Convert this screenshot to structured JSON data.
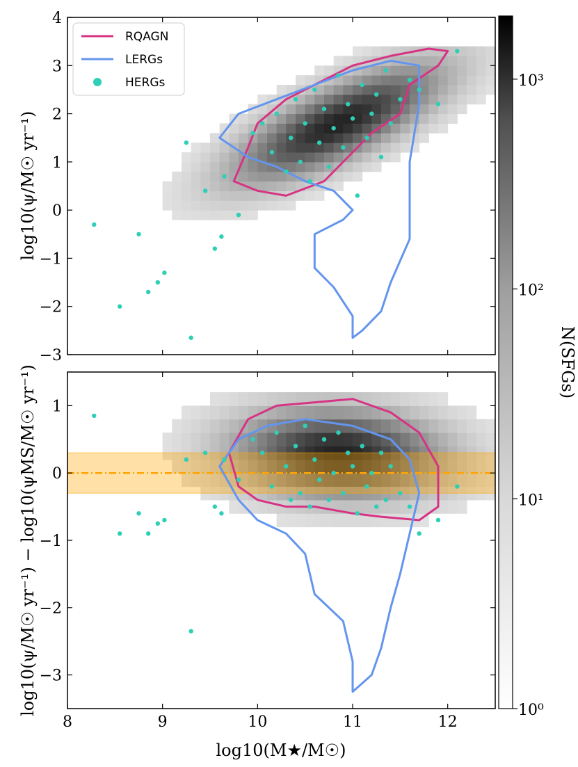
{
  "chart_data": [
    {
      "panel": "top",
      "type": "scatter",
      "ylabel": "log10(ψ/M☉ yr⁻¹)",
      "xlim": [
        8,
        12.5
      ],
      "ylim": [
        -3,
        4
      ],
      "yticks": [
        -3,
        -2,
        -1,
        0,
        1,
        2,
        3,
        4
      ],
      "ytick_labels": [
        "−3",
        "−2",
        "−1",
        "0",
        "1",
        "2",
        "3",
        "4"
      ],
      "legend": {
        "position": "top-left",
        "entries": [
          {
            "label": "RQAGN",
            "kind": "line",
            "color": "#d63384"
          },
          {
            "label": "LERGs",
            "kind": "line",
            "color": "#6495ed"
          },
          {
            "label": "HERGs",
            "kind": "marker",
            "color": "#2ecfb6"
          }
        ]
      },
      "series": [
        {
          "name": "SFGs",
          "kind": "2d-histogram (grey, log colour scale)"
        },
        {
          "name": "RQAGN",
          "kind": "density contour",
          "color": "#d63384",
          "contour": [
            [
              9.75,
              0.6
            ],
            [
              9.9,
              1.3
            ],
            [
              10.0,
              1.8
            ],
            [
              10.3,
              2.3
            ],
            [
              10.6,
              2.6
            ],
            [
              11.0,
              3.0
            ],
            [
              11.4,
              3.2
            ],
            [
              11.8,
              3.35
            ],
            [
              12.0,
              3.3
            ],
            [
              11.9,
              3.0
            ],
            [
              11.6,
              2.6
            ],
            [
              11.5,
              2.0
            ],
            [
              11.2,
              1.6
            ],
            [
              11.0,
              1.2
            ],
            [
              10.7,
              0.6
            ],
            [
              10.3,
              0.3
            ],
            [
              10.0,
              0.4
            ],
            [
              9.75,
              0.6
            ]
          ]
        },
        {
          "name": "LERGs",
          "kind": "density contour",
          "color": "#6495ed",
          "contour": [
            [
              9.6,
              1.5
            ],
            [
              9.8,
              2.0
            ],
            [
              10.2,
              2.3
            ],
            [
              10.6,
              2.6
            ],
            [
              11.0,
              2.9
            ],
            [
              11.4,
              3.1
            ],
            [
              11.7,
              3.0
            ],
            [
              11.7,
              2.2
            ],
            [
              11.6,
              1.0
            ],
            [
              11.6,
              0.2
            ],
            [
              11.6,
              -0.6
            ],
            [
              11.4,
              -1.5
            ],
            [
              11.3,
              -2.1
            ],
            [
              11.1,
              -2.5
            ],
            [
              11.0,
              -2.65
            ],
            [
              11.0,
              -2.2
            ],
            [
              10.8,
              -1.6
            ],
            [
              10.6,
              -1.2
            ],
            [
              10.6,
              -0.5
            ],
            [
              10.9,
              -0.2
            ],
            [
              11.0,
              0.0
            ],
            [
              10.8,
              0.4
            ],
            [
              10.5,
              0.6
            ],
            [
              10.2,
              0.9
            ],
            [
              9.9,
              1.1
            ],
            [
              9.6,
              1.5
            ]
          ]
        },
        {
          "name": "HERGs",
          "kind": "points",
          "color": "#2ecfb6",
          "x": [
            8.28,
            8.55,
            8.75,
            8.85,
            8.95,
            9.02,
            9.25,
            9.3,
            9.45,
            9.55,
            9.62,
            9.65,
            9.8,
            9.95,
            10.05,
            10.15,
            10.2,
            10.3,
            10.35,
            10.4,
            10.45,
            10.5,
            10.55,
            10.6,
            10.65,
            10.7,
            10.75,
            10.8,
            10.85,
            10.9,
            10.95,
            11.0,
            11.05,
            11.1,
            11.15,
            11.2,
            11.25,
            11.3,
            11.35,
            11.4,
            11.5,
            11.6,
            11.7,
            11.9,
            12.1
          ],
          "y": [
            -0.3,
            -2.0,
            -0.5,
            -1.7,
            -1.5,
            -1.3,
            1.4,
            -2.65,
            0.4,
            -0.8,
            -0.55,
            0.7,
            -0.1,
            1.6,
            1.8,
            1.2,
            2.0,
            0.8,
            1.5,
            2.3,
            1.0,
            1.8,
            0.6,
            2.5,
            1.4,
            2.1,
            0.9,
            1.7,
            2.8,
            1.3,
            2.2,
            1.9,
            0.3,
            2.6,
            1.5,
            2.0,
            2.4,
            1.1,
            2.9,
            1.8,
            2.3,
            2.7,
            2.5,
            2.2,
            3.3
          ]
        }
      ]
    },
    {
      "panel": "bottom",
      "type": "scatter",
      "xlabel": "log10(M★/M☉)",
      "ylabel": "log10(ψ/M☉ yr⁻¹) − log10(ψMS/M☉ yr⁻¹)",
      "xlim": [
        8,
        12.5
      ],
      "ylim": [
        -3.5,
        1.5
      ],
      "xticks": [
        8,
        9,
        10,
        11,
        12
      ],
      "xtick_labels": [
        "8",
        "9",
        "10",
        "11",
        "12"
      ],
      "yticks": [
        -3,
        -2,
        -1,
        0,
        1
      ],
      "ytick_labels": [
        "−3",
        "−2",
        "−1",
        "0",
        "1"
      ],
      "main_sequence_band": {
        "center": 0.0,
        "lower": -0.3,
        "upper": 0.3,
        "color": "#ffa500"
      },
      "series": [
        {
          "name": "SFGs",
          "kind": "2d-histogram (grey, log colour scale)"
        },
        {
          "name": "RQAGN",
          "kind": "density contour",
          "color": "#d63384",
          "contour": [
            [
              9.7,
              0.3
            ],
            [
              9.9,
              0.8
            ],
            [
              10.2,
              1.0
            ],
            [
              10.6,
              1.05
            ],
            [
              11.0,
              1.1
            ],
            [
              11.4,
              0.9
            ],
            [
              11.7,
              0.6
            ],
            [
              11.9,
              0.1
            ],
            [
              11.9,
              -0.5
            ],
            [
              11.7,
              -0.7
            ],
            [
              11.3,
              -0.65
            ],
            [
              11.0,
              -0.6
            ],
            [
              10.6,
              -0.5
            ],
            [
              10.3,
              -0.5
            ],
            [
              10.0,
              -0.4
            ],
            [
              9.8,
              -0.2
            ],
            [
              9.7,
              0.3
            ]
          ]
        },
        {
          "name": "LERGs",
          "kind": "density contour",
          "color": "#6495ed",
          "contour": [
            [
              9.6,
              0.1
            ],
            [
              9.8,
              0.5
            ],
            [
              10.1,
              0.7
            ],
            [
              10.5,
              0.8
            ],
            [
              11.0,
              0.7
            ],
            [
              11.4,
              0.5
            ],
            [
              11.6,
              0.2
            ],
            [
              11.7,
              -0.3
            ],
            [
              11.6,
              -0.9
            ],
            [
              11.5,
              -1.5
            ],
            [
              11.4,
              -2.0
            ],
            [
              11.3,
              -2.6
            ],
            [
              11.2,
              -3.0
            ],
            [
              11.0,
              -3.25
            ],
            [
              11.0,
              -2.8
            ],
            [
              10.9,
              -2.2
            ],
            [
              10.6,
              -1.8
            ],
            [
              10.5,
              -1.2
            ],
            [
              10.3,
              -0.9
            ],
            [
              10.0,
              -0.7
            ],
            [
              9.8,
              -0.4
            ],
            [
              9.6,
              0.1
            ]
          ]
        },
        {
          "name": "HERGs",
          "kind": "points",
          "color": "#2ecfb6",
          "x": [
            8.28,
            8.55,
            8.75,
            8.85,
            8.95,
            9.02,
            9.25,
            9.3,
            9.45,
            9.55,
            9.62,
            9.65,
            9.8,
            9.95,
            10.05,
            10.15,
            10.2,
            10.3,
            10.35,
            10.4,
            10.45,
            10.5,
            10.55,
            10.6,
            10.65,
            10.7,
            10.75,
            10.8,
            10.85,
            10.9,
            10.95,
            11.0,
            11.05,
            11.1,
            11.15,
            11.2,
            11.25,
            11.3,
            11.35,
            11.4,
            11.5,
            11.6,
            11.7,
            11.9,
            12.1
          ],
          "y": [
            0.85,
            -0.9,
            -0.6,
            -0.9,
            -0.75,
            -0.7,
            0.2,
            -2.35,
            0.3,
            -0.5,
            -0.6,
            0.2,
            -0.1,
            0.5,
            0.3,
            -0.2,
            0.6,
            0.1,
            -0.4,
            0.4,
            -0.3,
            0.7,
            -0.5,
            0.2,
            -0.1,
            0.5,
            -0.4,
            0.0,
            0.6,
            -0.3,
            0.3,
            0.1,
            -0.6,
            0.4,
            -0.2,
            0.0,
            -0.5,
            0.3,
            -0.4,
            0.1,
            -0.3,
            -0.5,
            -0.9,
            -0.7,
            -0.2
          ]
        }
      ]
    }
  ],
  "colorbar": {
    "label": "N(SFGs)",
    "scale": "log",
    "range": [
      1,
      2000
    ],
    "ticks": [
      1,
      10,
      100,
      1000
    ],
    "tick_labels": [
      "10⁰",
      "10¹",
      "10²",
      "10³"
    ]
  }
}
